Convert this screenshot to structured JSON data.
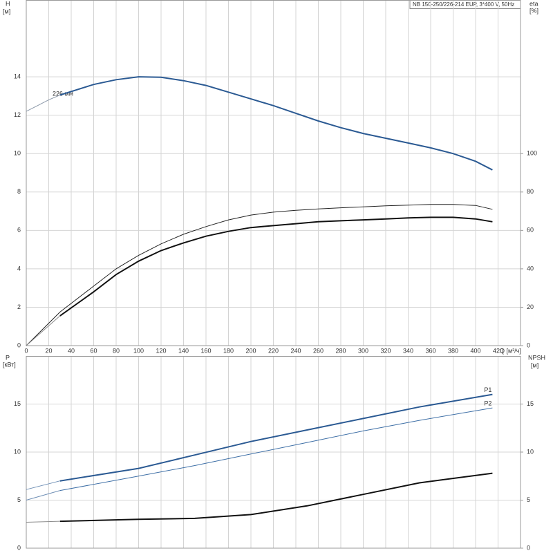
{
  "chart_data": [
    {
      "type": "line",
      "title": "NB 150-250/226-214 EUP, 3*400 V, 50Hz",
      "ylabel": "H",
      "yunit": "[м]",
      "y2label": "eta",
      "y2unit": "[%]",
      "xlabel": "Q [м³/ч]",
      "annotation": "226 мм",
      "xlim": [
        0,
        440
      ],
      "xticks": [
        0,
        20,
        40,
        60,
        80,
        100,
        120,
        140,
        160,
        180,
        200,
        220,
        240,
        260,
        280,
        300,
        320,
        340,
        360,
        380,
        400,
        420
      ],
      "ylim": [
        0,
        18
      ],
      "yticks": [
        0,
        2,
        4,
        6,
        8,
        10,
        12,
        14
      ],
      "y2lim": [
        0,
        180
      ],
      "y2ticks": [
        0,
        20,
        40,
        60,
        80,
        100
      ],
      "grid": true,
      "series": [
        {
          "color": "#8a97a8",
          "line_width": 1,
          "x": [
            0,
            10,
            20,
            30
          ],
          "values": [
            12.2,
            12.5,
            12.8,
            13.05
          ]
        },
        {
          "color": "#2b5a93",
          "line_width": 2,
          "x": [
            30,
            60,
            80,
            100,
            120,
            140,
            160,
            180,
            200,
            220,
            240,
            260,
            280,
            300,
            320,
            340,
            360,
            380,
            400,
            415
          ],
          "values": [
            13.05,
            13.6,
            13.85,
            14.0,
            13.98,
            13.8,
            13.55,
            13.2,
            12.85,
            12.5,
            12.1,
            11.7,
            11.35,
            11.05,
            10.8,
            10.55,
            10.3,
            10.0,
            9.6,
            9.15
          ]
        },
        {
          "color": "#222222",
          "line_width": 1,
          "axis": "y2",
          "x": [
            0,
            30,
            60,
            80,
            100,
            120,
            140,
            160,
            180,
            200,
            220,
            240,
            260,
            280,
            300,
            320,
            340,
            360,
            380,
            400,
            415
          ],
          "values": [
            0,
            17.5,
            31,
            40,
            47,
            53,
            58,
            62,
            65.5,
            68,
            69.5,
            70.5,
            71.2,
            71.8,
            72.3,
            72.8,
            73.2,
            73.5,
            73.5,
            73,
            71
          ]
        },
        {
          "color": "#8a8a8a",
          "line_width": 1,
          "axis": "y2",
          "x": [
            0,
            30
          ],
          "values": [
            0,
            15.5
          ]
        },
        {
          "color": "#111111",
          "line_width": 2,
          "axis": "y2",
          "x": [
            30,
            60,
            80,
            100,
            120,
            140,
            160,
            180,
            200,
            220,
            240,
            260,
            280,
            300,
            320,
            340,
            360,
            380,
            400,
            415
          ],
          "values": [
            15.5,
            28,
            37,
            44,
            49.5,
            53.5,
            57,
            59.5,
            61.5,
            62.5,
            63.5,
            64.5,
            65,
            65.5,
            66,
            66.5,
            66.8,
            66.8,
            66,
            64.5
          ]
        }
      ]
    },
    {
      "type": "line",
      "ylabel": "P",
      "yunit": "[кВт]",
      "y2label": "NPSH",
      "y2unit": "[м]",
      "xlim": [
        0,
        440
      ],
      "ylim": [
        0,
        20
      ],
      "yticks": [
        0,
        5,
        10,
        15
      ],
      "y2lim": [
        0,
        20
      ],
      "y2ticks": [
        0,
        5,
        10,
        15
      ],
      "grid": true,
      "series": [
        {
          "color": "#6f8fb5",
          "line_width": 1,
          "x": [
            0,
            30
          ],
          "values": [
            6.1,
            7.0
          ]
        },
        {
          "name": "P1",
          "color": "#2b5a93",
          "line_width": 2,
          "x": [
            30,
            100,
            150,
            200,
            250,
            300,
            350,
            415
          ],
          "values": [
            7.0,
            8.3,
            9.7,
            11.1,
            12.3,
            13.5,
            14.7,
            16.0
          ]
        },
        {
          "color": "#6f8fb5",
          "line_width": 1,
          "x": [
            0,
            30
          ],
          "values": [
            5.0,
            6.0
          ]
        },
        {
          "name": "P2",
          "color": "#3e6fa6",
          "line_width": 1,
          "x": [
            30,
            100,
            150,
            200,
            250,
            300,
            350,
            415
          ],
          "values": [
            6.0,
            7.5,
            8.6,
            9.8,
            11.0,
            12.2,
            13.3,
            14.6
          ]
        },
        {
          "color": "#8a8a8a",
          "line_width": 1,
          "axis": "y2",
          "x": [
            0,
            30
          ],
          "values": [
            2.7,
            2.8
          ]
        },
        {
          "color": "#111111",
          "line_width": 2,
          "axis": "y2",
          "x": [
            30,
            100,
            150,
            200,
            250,
            300,
            350,
            415
          ],
          "values": [
            2.8,
            3.0,
            3.1,
            3.5,
            4.4,
            5.6,
            6.8,
            7.8
          ]
        }
      ]
    }
  ]
}
